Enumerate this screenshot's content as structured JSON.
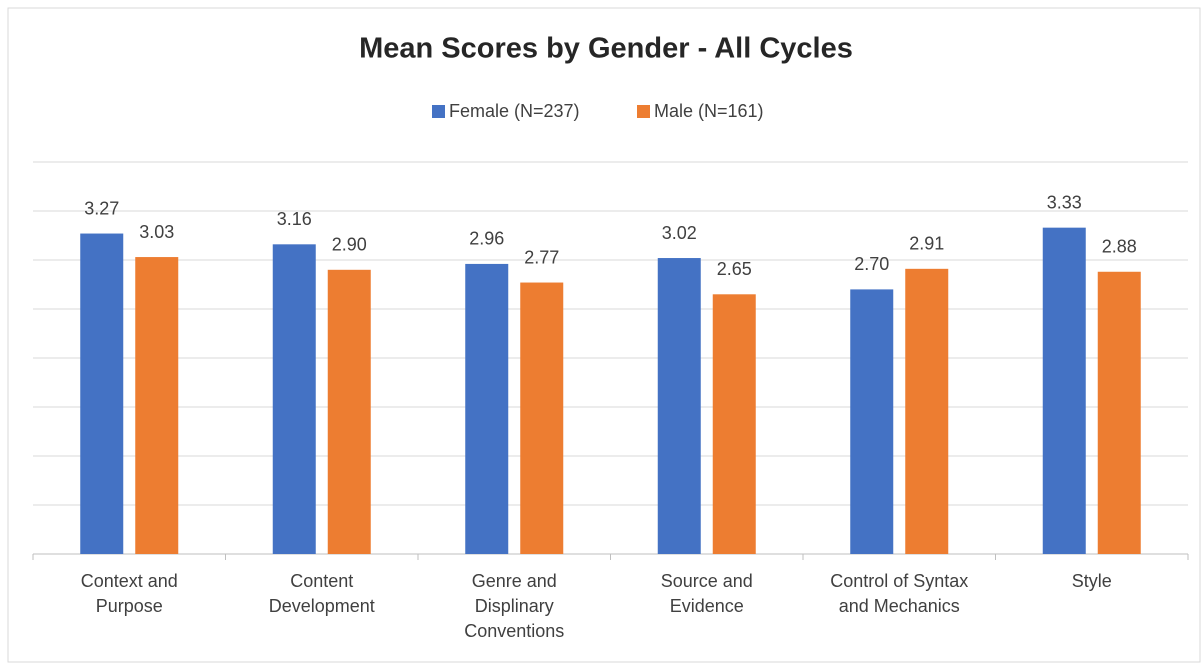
{
  "chart_data": {
    "type": "bar",
    "title": "Mean Scores  by Gender - All Cycles",
    "categories": [
      [
        "Context and",
        "Purpose"
      ],
      [
        "Content",
        "Development"
      ],
      [
        "Genre and",
        "Displinary",
        "Conventions"
      ],
      [
        "Source and",
        "Evidence"
      ],
      [
        "Control of Syntax",
        "and Mechanics"
      ],
      [
        "Style"
      ]
    ],
    "series": [
      {
        "name": "Female (N=237)",
        "color": "#4472c4",
        "values": [
          3.27,
          3.16,
          2.96,
          3.02,
          2.7,
          3.33
        ],
        "value_labels": [
          "3.27",
          "3.16",
          "2.96",
          "3.02",
          "2.70",
          "3.33"
        ]
      },
      {
        "name": "Male (N=161)",
        "color": "#ed7d31",
        "values": [
          3.03,
          2.9,
          2.77,
          2.65,
          2.91,
          2.88
        ],
        "value_labels": [
          "3.03",
          "2.90",
          "2.77",
          "2.65",
          "2.91",
          "2.88"
        ]
      }
    ],
    "ylim": [
      0,
      4
    ],
    "yticks": [
      0,
      0.5,
      1,
      1.5,
      2,
      2.5,
      3,
      3.5,
      4
    ],
    "grid": true,
    "legend": "top"
  }
}
